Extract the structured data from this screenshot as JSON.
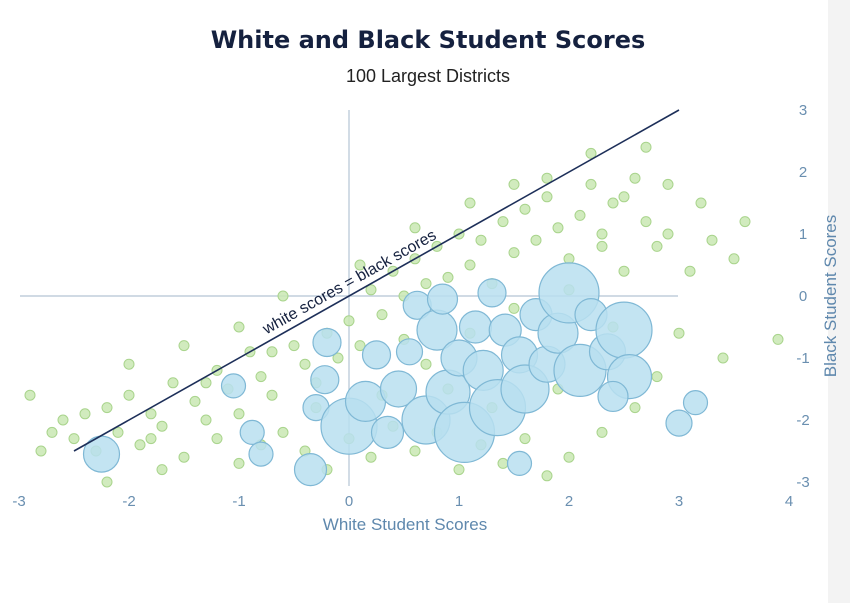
{
  "chart_data": {
    "type": "scatter",
    "title": "White and Black Student Scores",
    "subtitle": "100 Largest Districts",
    "xlabel": "White Student Scores",
    "ylabel": "Black Student Scores",
    "xlim": [
      -3,
      4
    ],
    "ylim": [
      -3,
      3
    ],
    "x_ticks": [
      "-3",
      "-2",
      "-1",
      "0",
      "1",
      "2",
      "3",
      "4"
    ],
    "y_ticks": [
      "3",
      "2",
      "1",
      "0",
      "-1",
      "-2",
      "-3"
    ],
    "reference_line": {
      "label": "white scores = black scores",
      "from": [
        -2.5,
        -2.5
      ],
      "to": [
        3,
        3
      ]
    },
    "series": [
      {
        "color": "#c9e8b3",
        "stroke": "#a9d48c",
        "points": [
          {
            "x": -2.7,
            "y": -2.2
          },
          {
            "x": -2.6,
            "y": -2.0
          },
          {
            "x": -2.5,
            "y": -2.3
          },
          {
            "x": -2.4,
            "y": -1.9
          },
          {
            "x": -2.3,
            "y": -2.5
          },
          {
            "x": -2.2,
            "y": -1.8
          },
          {
            "x": -2.1,
            "y": -2.2
          },
          {
            "x": -2.0,
            "y": -1.6
          },
          {
            "x": -1.9,
            "y": -2.4
          },
          {
            "x": -1.8,
            "y": -1.9
          },
          {
            "x": -1.7,
            "y": -2.1
          },
          {
            "x": -1.6,
            "y": -1.4
          },
          {
            "x": -1.5,
            "y": -2.6
          },
          {
            "x": -1.4,
            "y": -1.7
          },
          {
            "x": -1.3,
            "y": -2.0
          },
          {
            "x": -1.2,
            "y": -1.2
          },
          {
            "x": -1.1,
            "y": -1.5
          },
          {
            "x": -1.0,
            "y": -1.9
          },
          {
            "x": -0.9,
            "y": -0.9
          },
          {
            "x": -0.8,
            "y": -1.3
          },
          {
            "x": -0.7,
            "y": -1.6
          },
          {
            "x": -0.6,
            "y": -2.2
          },
          {
            "x": -0.5,
            "y": -0.8
          },
          {
            "x": -0.4,
            "y": -1.1
          },
          {
            "x": -0.3,
            "y": -1.4
          },
          {
            "x": -0.2,
            "y": -0.6
          },
          {
            "x": -0.1,
            "y": -1.0
          },
          {
            "x": 0.0,
            "y": -0.4
          },
          {
            "x": 0.1,
            "y": -0.8
          },
          {
            "x": 0.2,
            "y": 0.1
          },
          {
            "x": 0.3,
            "y": -0.3
          },
          {
            "x": 0.4,
            "y": 0.4
          },
          {
            "x": 0.5,
            "y": 0.0
          },
          {
            "x": 0.6,
            "y": 0.6
          },
          {
            "x": 0.7,
            "y": 0.2
          },
          {
            "x": 0.8,
            "y": 0.8
          },
          {
            "x": 0.9,
            "y": 0.3
          },
          {
            "x": 1.0,
            "y": 1.0
          },
          {
            "x": 1.1,
            "y": 0.5
          },
          {
            "x": 1.2,
            "y": 0.9
          },
          {
            "x": 1.3,
            "y": 0.2
          },
          {
            "x": 1.4,
            "y": 1.2
          },
          {
            "x": 1.5,
            "y": 0.7
          },
          {
            "x": 1.6,
            "y": 1.4
          },
          {
            "x": 1.7,
            "y": 0.9
          },
          {
            "x": 1.8,
            "y": 1.6
          },
          {
            "x": 1.9,
            "y": 1.1
          },
          {
            "x": 2.0,
            "y": 0.6
          },
          {
            "x": 2.1,
            "y": 1.3
          },
          {
            "x": 2.2,
            "y": 1.8
          },
          {
            "x": 2.3,
            "y": 0.8
          },
          {
            "x": 2.4,
            "y": 1.5
          },
          {
            "x": 2.5,
            "y": 0.4
          },
          {
            "x": 2.6,
            "y": 1.9
          },
          {
            "x": 2.7,
            "y": 1.2
          },
          {
            "x": 2.8,
            "y": 0.8
          },
          {
            "x": 2.9,
            "y": 1.0
          },
          {
            "x": 3.1,
            "y": 0.4
          },
          {
            "x": 3.3,
            "y": 0.9
          },
          {
            "x": 3.5,
            "y": 0.6
          },
          {
            "x": 3.6,
            "y": 1.2
          },
          {
            "x": 3.9,
            "y": -0.7
          },
          {
            "x": 3.4,
            "y": -1.0
          },
          {
            "x": 3.0,
            "y": -0.6
          },
          {
            "x": 2.8,
            "y": -1.3
          },
          {
            "x": 2.6,
            "y": -1.8
          },
          {
            "x": 2.3,
            "y": -2.2
          },
          {
            "x": 2.0,
            "y": -2.6
          },
          {
            "x": 1.8,
            "y": -2.9
          },
          {
            "x": 1.6,
            "y": -2.3
          },
          {
            "x": 1.4,
            "y": -2.7
          },
          {
            "x": 1.2,
            "y": -2.4
          },
          {
            "x": 1.0,
            "y": -2.8
          },
          {
            "x": 0.8,
            "y": -2.2
          },
          {
            "x": 0.6,
            "y": -2.5
          },
          {
            "x": 0.4,
            "y": -2.1
          },
          {
            "x": 0.2,
            "y": -2.6
          },
          {
            "x": 0.0,
            "y": -2.3
          },
          {
            "x": -0.2,
            "y": -2.8
          },
          {
            "x": -0.4,
            "y": -2.5
          },
          {
            "x": -0.8,
            "y": -2.4
          },
          {
            "x": -1.0,
            "y": -2.7
          },
          {
            "x": -1.2,
            "y": -2.3
          },
          {
            "x": -1.7,
            "y": -2.8
          },
          {
            "x": -2.2,
            "y": -3.0
          },
          {
            "x": -2.8,
            "y": -2.5
          },
          {
            "x": -2.9,
            "y": -1.6
          },
          {
            "x": -2.0,
            "y": -1.1
          },
          {
            "x": -1.5,
            "y": -0.8
          },
          {
            "x": -1.0,
            "y": -0.5
          },
          {
            "x": -0.6,
            "y": 0.0
          },
          {
            "x": 0.1,
            "y": 0.5
          },
          {
            "x": 0.6,
            "y": 1.1
          },
          {
            "x": 1.1,
            "y": 1.5
          },
          {
            "x": 1.8,
            "y": 1.9
          },
          {
            "x": 2.7,
            "y": 2.4
          },
          {
            "x": 3.2,
            "y": 1.5
          },
          {
            "x": 2.9,
            "y": 1.8
          },
          {
            "x": 2.2,
            "y": 2.3
          },
          {
            "x": 1.5,
            "y": 1.8
          },
          {
            "x": 0.3,
            "y": -1.6
          },
          {
            "x": 0.7,
            "y": -1.1
          },
          {
            "x": 1.1,
            "y": -0.6
          },
          {
            "x": 1.5,
            "y": -0.2
          },
          {
            "x": 2.0,
            "y": 0.1
          },
          {
            "x": 2.4,
            "y": -0.5
          },
          {
            "x": 1.9,
            "y": -1.5
          },
          {
            "x": 1.3,
            "y": -1.8
          },
          {
            "x": 0.9,
            "y": -1.5
          },
          {
            "x": 0.5,
            "y": -0.7
          },
          {
            "x": -0.3,
            "y": -1.8
          },
          {
            "x": -0.7,
            "y": -0.9
          },
          {
            "x": -1.3,
            "y": -1.4
          },
          {
            "x": -1.8,
            "y": -2.3
          },
          {
            "x": 2.3,
            "y": 1.0
          },
          {
            "x": 2.5,
            "y": 1.6
          }
        ]
      },
      {
        "color": "#b9dff0",
        "stroke": "#7fb8d5",
        "points": [
          {
            "x": -2.25,
            "y": -2.55,
            "size": 18
          },
          {
            "x": -1.05,
            "y": -1.45,
            "size": 12
          },
          {
            "x": -0.88,
            "y": -2.2,
            "size": 12
          },
          {
            "x": -0.8,
            "y": -2.55,
            "size": 12
          },
          {
            "x": -0.35,
            "y": -2.8,
            "size": 16
          },
          {
            "x": -0.3,
            "y": -1.8,
            "size": 13
          },
          {
            "x": -0.22,
            "y": -1.35,
            "size": 14
          },
          {
            "x": 0.0,
            "y": -2.1,
            "size": 28
          },
          {
            "x": 0.15,
            "y": -1.7,
            "size": 20
          },
          {
            "x": 0.25,
            "y": -0.95,
            "size": 14
          },
          {
            "x": 0.35,
            "y": -2.2,
            "size": 16
          },
          {
            "x": 0.45,
            "y": -1.5,
            "size": 18
          },
          {
            "x": 0.55,
            "y": -0.9,
            "size": 13
          },
          {
            "x": 0.62,
            "y": -0.15,
            "size": 14
          },
          {
            "x": 0.7,
            "y": -2.0,
            "size": 24
          },
          {
            "x": 0.8,
            "y": -0.55,
            "size": 20
          },
          {
            "x": 0.9,
            "y": -1.55,
            "size": 22
          },
          {
            "x": 1.0,
            "y": -1.0,
            "size": 18
          },
          {
            "x": 1.05,
            "y": -2.2,
            "size": 30
          },
          {
            "x": 1.15,
            "y": -0.5,
            "size": 16
          },
          {
            "x": 1.22,
            "y": -1.2,
            "size": 20
          },
          {
            "x": 1.35,
            "y": -1.8,
            "size": 28
          },
          {
            "x": 1.42,
            "y": -0.55,
            "size": 16
          },
          {
            "x": 1.55,
            "y": -0.95,
            "size": 18
          },
          {
            "x": 1.6,
            "y": -1.5,
            "size": 24
          },
          {
            "x": 1.7,
            "y": -0.3,
            "size": 16
          },
          {
            "x": 1.8,
            "y": -1.1,
            "size": 18
          },
          {
            "x": 1.9,
            "y": -0.6,
            "size": 20
          },
          {
            "x": 2.0,
            "y": 0.05,
            "size": 30
          },
          {
            "x": 2.1,
            "y": -1.2,
            "size": 26
          },
          {
            "x": 2.2,
            "y": -0.3,
            "size": 16
          },
          {
            "x": 2.35,
            "y": -0.9,
            "size": 18
          },
          {
            "x": 2.5,
            "y": -0.55,
            "size": 28
          },
          {
            "x": 2.55,
            "y": -1.3,
            "size": 22
          },
          {
            "x": 2.4,
            "y": -1.62,
            "size": 15
          },
          {
            "x": 3.0,
            "y": -2.05,
            "size": 13
          },
          {
            "x": 3.15,
            "y": -1.72,
            "size": 12
          },
          {
            "x": 1.55,
            "y": -2.7,
            "size": 12
          },
          {
            "x": -0.2,
            "y": -0.75,
            "size": 14
          },
          {
            "x": 0.85,
            "y": -0.05,
            "size": 15
          },
          {
            "x": 1.3,
            "y": 0.05,
            "size": 14
          }
        ]
      }
    ]
  }
}
